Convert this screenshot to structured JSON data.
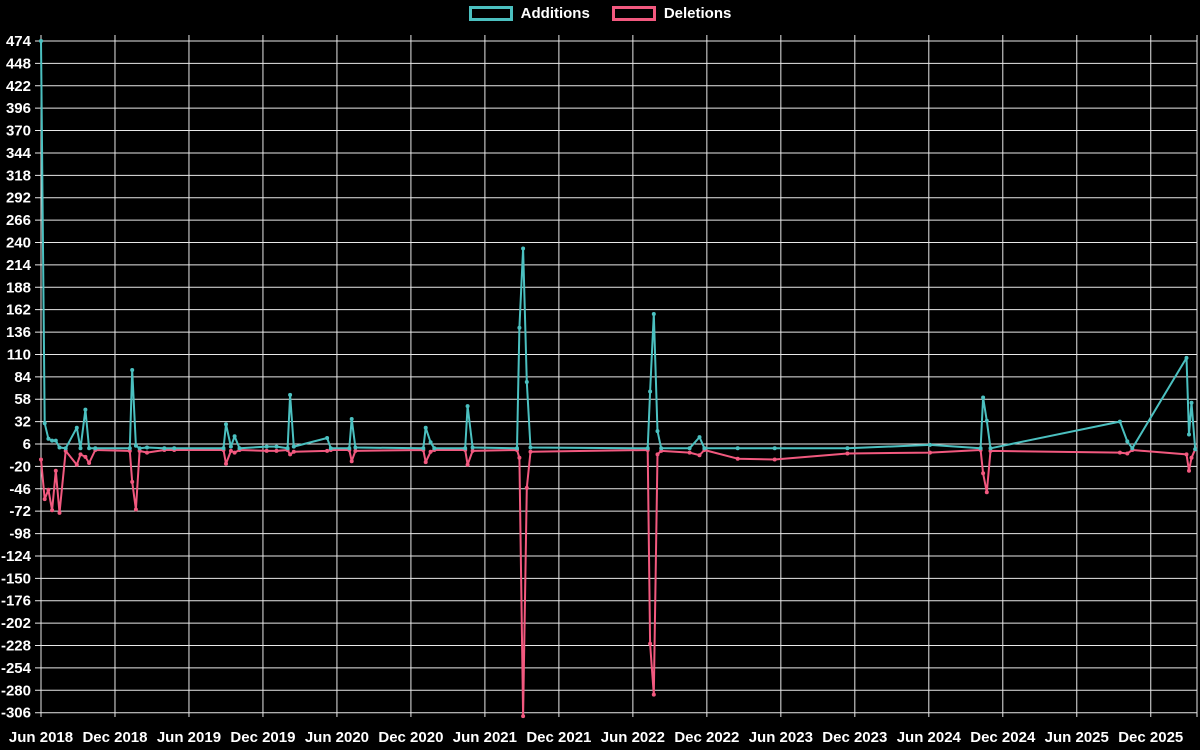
{
  "legend": {
    "items": [
      {
        "label": "Additions",
        "color": "#4bc0c0"
      },
      {
        "label": "Deletions",
        "color": "#f2597f"
      }
    ]
  },
  "colors": {
    "background": "#000000",
    "gridline": "#e8e8e8",
    "tick_label": "#ffffff",
    "additions": "#4bc0c0",
    "deletions": "#f2597f"
  },
  "chart_data": {
    "type": "line",
    "title": "",
    "xlabel": "",
    "ylabel": "",
    "grid": true,
    "legend_position": "top-center",
    "x_unit": "months since Jun 2018",
    "x_range": [
      0,
      93.75
    ],
    "y_range": [
      -311,
      474
    ],
    "y_ticks": [
      474,
      448,
      422,
      396,
      370,
      344,
      318,
      292,
      266,
      240,
      214,
      188,
      162,
      136,
      110,
      84,
      58,
      32,
      6,
      -20,
      -46,
      -72,
      -98,
      -124,
      -150,
      -176,
      -202,
      -228,
      -254,
      -280,
      -306
    ],
    "x_tick_positions": [
      0,
      6,
      12,
      18,
      24,
      30,
      36,
      42,
      48,
      54,
      60,
      66,
      72,
      78,
      84,
      90
    ],
    "x_tick_labels": [
      "Jun 2018",
      "Dec 2018",
      "Jun 2019",
      "Dec 2019",
      "Jun 2020",
      "Dec 2020",
      "Jun 2021",
      "Dec 2021",
      "Jun 2022",
      "Dec 2022",
      "Jun 2023",
      "Dec 2023",
      "Jun 2024",
      "Dec 2024",
      "Jun 2025",
      "Dec 2025"
    ],
    "x": [
      0,
      0.3,
      0.6,
      0.9,
      1.2,
      1.5,
      2.0,
      2.9,
      3.2,
      3.6,
      3.9,
      4.4,
      7.2,
      7.4,
      7.7,
      8.0,
      8.6,
      10.0,
      10.8,
      14.8,
      15.0,
      15.4,
      15.7,
      16.1,
      18.3,
      19.1,
      20.0,
      20.2,
      20.5,
      23.2,
      23.5,
      25.0,
      25.2,
      25.5,
      31.0,
      31.2,
      31.6,
      31.9,
      34.4,
      34.6,
      35.0,
      38.6,
      38.8,
      39.1,
      39.4,
      39.7,
      49.2,
      49.4,
      49.7,
      50.0,
      50.3,
      52.6,
      53.4,
      53.8,
      56.5,
      59.5,
      65.4,
      72.1,
      76.2,
      76.4,
      76.7,
      77.0,
      87.5,
      88.1,
      88.5,
      92.9,
      93.1,
      93.3,
      93.6
    ],
    "series": [
      {
        "name": "Additions",
        "color": "#4bc0c0",
        "values": [
          474,
          30,
          12,
          10,
          10,
          2,
          1,
          25,
          1,
          46,
          1,
          1,
          1,
          92,
          4,
          1,
          2,
          1,
          1,
          1,
          29,
          3,
          15,
          1,
          3,
          3,
          1,
          63,
          3,
          13,
          1,
          1,
          35,
          2,
          1,
          25,
          8,
          1,
          1,
          50,
          2,
          1,
          141,
          233,
          78,
          2,
          1,
          67,
          157,
          21,
          1,
          1,
          14,
          1,
          1,
          1,
          1,
          5,
          1,
          60,
          33,
          1,
          32,
          9,
          1,
          106,
          17,
          54,
          0
        ]
      },
      {
        "name": "Deletions",
        "color": "#f2597f",
        "values": [
          -12,
          -58,
          -47,
          -71,
          -25,
          -74,
          -2,
          -18,
          -6,
          -9,
          -16,
          -1,
          -2,
          -38,
          -70,
          -2,
          -4,
          -1,
          -1,
          -1,
          -17,
          -2,
          -4,
          -1,
          -2,
          -2,
          -1,
          -6,
          -3,
          -2,
          -1,
          -1,
          -14,
          -2,
          -1,
          -15,
          -3,
          -1,
          -1,
          -18,
          -2,
          -1,
          -10,
          -310,
          -45,
          -3,
          -1,
          -226,
          -285,
          -6,
          -2,
          -4,
          -7,
          -1,
          -11,
          -12,
          -5,
          -4,
          -1,
          -28,
          -50,
          -2,
          -4,
          -5,
          -1,
          -6,
          -25,
          -10,
          0
        ]
      }
    ]
  }
}
